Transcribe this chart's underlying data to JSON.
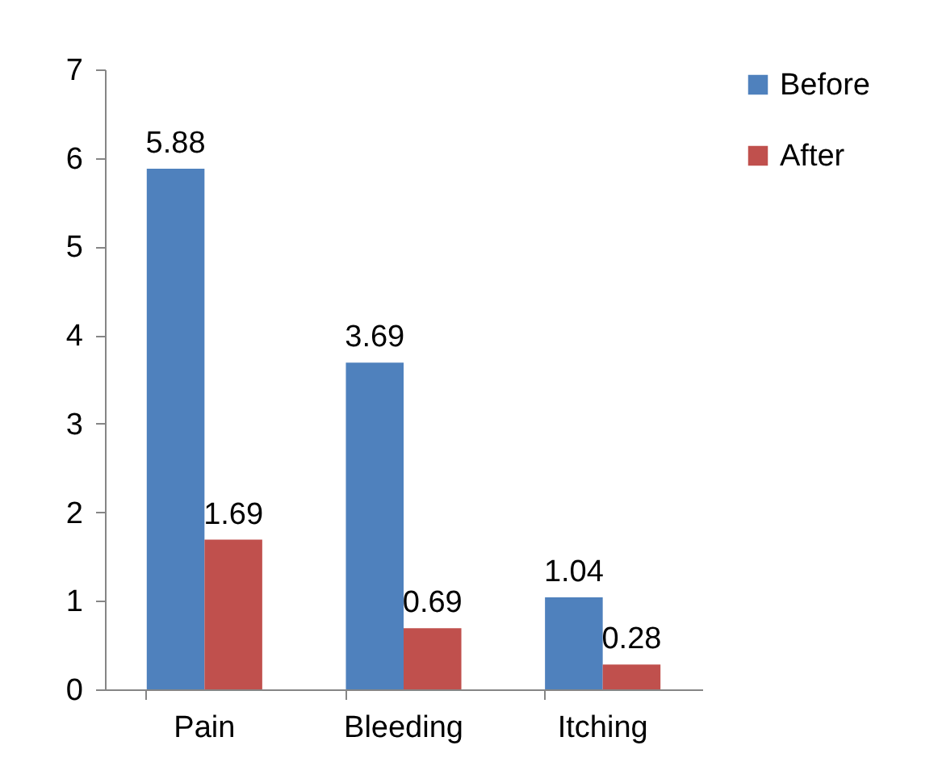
{
  "chart_data": {
    "type": "bar",
    "categories": [
      "Pain",
      "Bleeding",
      "Itching"
    ],
    "series": [
      {
        "name": "Before",
        "color": "#4f81bd",
        "values": [
          5.88,
          3.69,
          1.04
        ]
      },
      {
        "name": "After",
        "color": "#c0504d",
        "values": [
          1.69,
          0.69,
          0.28
        ]
      }
    ],
    "ylim": [
      0,
      7
    ],
    "yticks": [
      0,
      1,
      2,
      3,
      4,
      5,
      6,
      7
    ],
    "grid": false,
    "legend": "right",
    "data_labels": true
  }
}
